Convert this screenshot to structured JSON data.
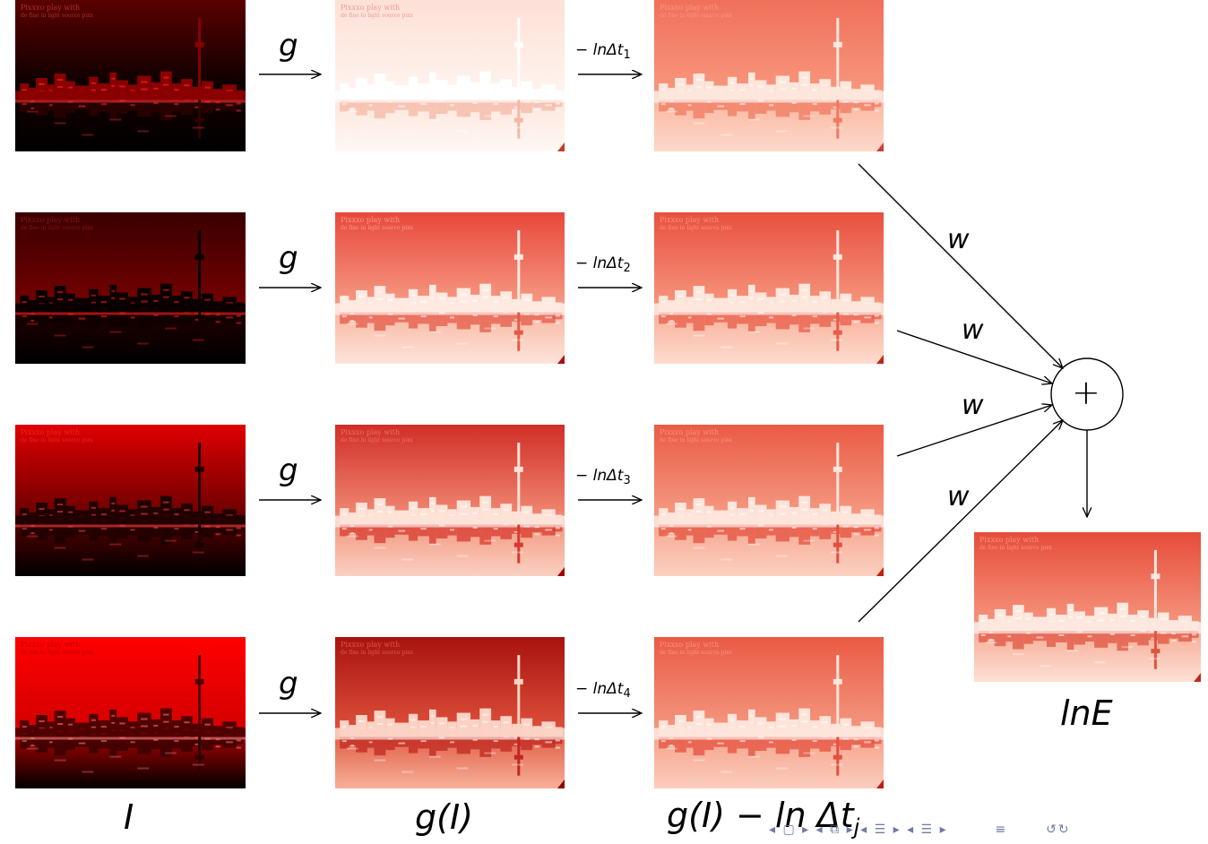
{
  "labels": {
    "g_arrow": "g",
    "shift_prefix": "− lnΔt",
    "shift_indices": [
      "1",
      "2",
      "3",
      "4"
    ],
    "weight": "w",
    "sum_symbol": "+",
    "col1": "I",
    "col2": "g(I)",
    "col3_main": "g(I) − ln Δt",
    "col3_sub": "j",
    "output": "lnE"
  },
  "image_caption_lines": [
    "Pixxxo play with",
    "de fine in light source pixx"
  ],
  "colors": {
    "arrow": "#000000",
    "nav": "#6f7aa6"
  },
  "icons": {
    "navigation": [
      "nav-left-arrow-icon",
      "frame-icon",
      "nav-right-arrow-icon",
      "section-icon",
      "subsection-icon",
      "align-icon",
      "search-loop-icon"
    ]
  }
}
